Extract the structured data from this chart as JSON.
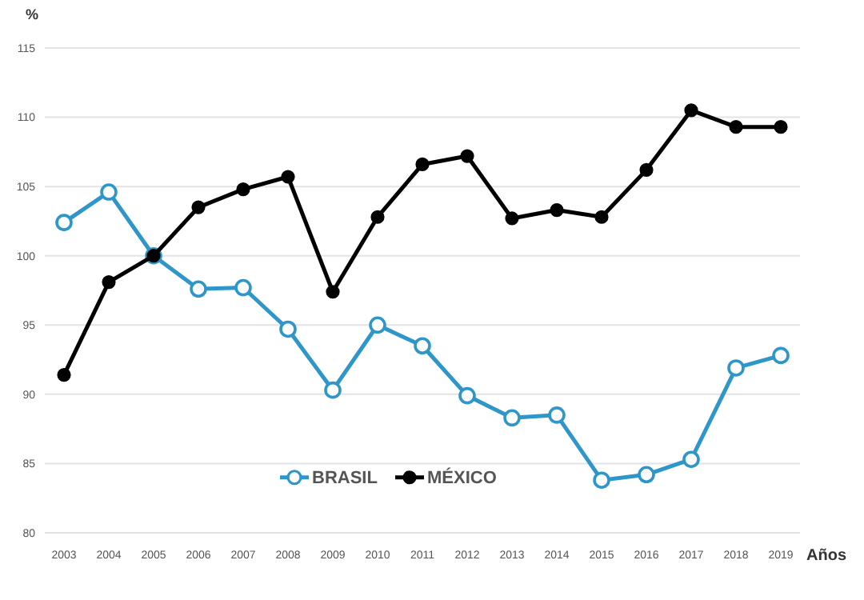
{
  "chart_data": {
    "type": "line",
    "ylabel": "%",
    "xlabel": "Años",
    "categories": [
      "2003",
      "2004",
      "2005",
      "2006",
      "2007",
      "2008",
      "2009",
      "2010",
      "2011",
      "2012",
      "2013",
      "2014",
      "2015",
      "2016",
      "2017",
      "2018",
      "2019"
    ],
    "series": [
      {
        "name": "BRASIL",
        "color": "#2e96c8",
        "marker": "circle",
        "values": [
          102.4,
          104.6,
          100,
          97.6,
          97.7,
          94.7,
          90.3,
          95.0,
          93.5,
          89.9,
          88.3,
          88.5,
          83.8,
          84.2,
          85.3,
          91.9,
          92.8
        ]
      },
      {
        "name": "MÉXICO",
        "color": "#000000",
        "marker": "circle",
        "values": [
          91.4,
          98.1,
          100,
          103.5,
          104.8,
          105.7,
          97.4,
          102.8,
          106.6,
          107.2,
          102.7,
          103.3,
          102.8,
          106.2,
          110.5,
          109.3,
          109.3
        ]
      }
    ],
    "ylim": [
      80,
      115
    ],
    "yticks": [
      80,
      85,
      90,
      95,
      100,
      105,
      110,
      115
    ],
    "grid": "y",
    "legend": "bottom",
    "line_style": "solid"
  }
}
